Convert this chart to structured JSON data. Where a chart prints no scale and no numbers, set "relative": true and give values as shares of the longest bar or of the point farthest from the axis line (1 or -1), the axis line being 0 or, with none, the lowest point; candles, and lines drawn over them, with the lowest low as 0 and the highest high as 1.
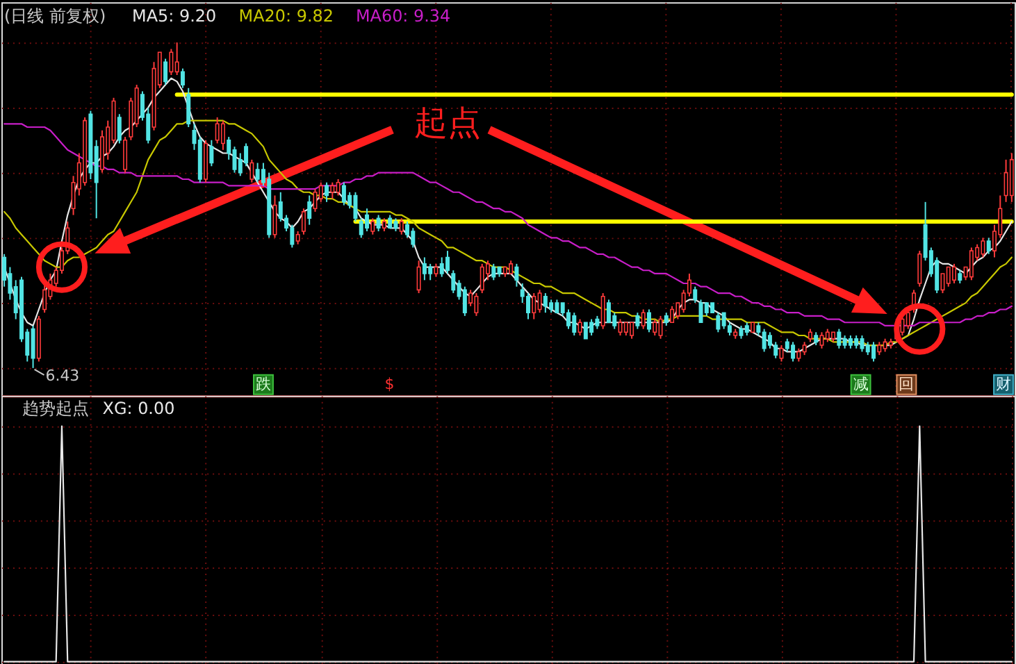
{
  "chart_data": [
    {
      "type": "candlestick",
      "relative": true,
      "title": "(日线 前复权)",
      "grid": true,
      "categories": [
        null,
        null,
        null,
        null,
        null,
        null,
        null,
        null,
        null,
        null,
        null,
        null,
        null,
        null,
        null,
        null,
        null,
        null,
        null,
        null,
        null,
        null,
        null,
        null,
        null,
        null,
        null,
        null,
        null,
        null,
        null,
        null,
        null,
        null,
        null,
        null,
        null,
        null,
        null,
        null,
        null,
        null,
        null,
        null,
        null,
        null,
        null,
        null,
        null,
        null,
        null,
        null,
        null,
        null,
        null,
        null,
        null,
        null,
        null,
        null,
        null,
        null,
        null,
        null,
        null,
        null,
        null,
        null,
        null,
        null,
        null,
        null,
        null,
        null,
        null,
        null,
        null,
        null,
        null,
        null,
        null,
        null,
        null,
        null,
        null,
        null,
        null,
        null,
        null,
        null,
        null,
        null,
        null,
        null,
        null,
        null,
        null,
        null,
        null,
        null,
        null,
        null,
        null,
        null,
        null,
        null,
        null,
        null,
        null,
        null,
        null,
        null,
        null,
        null,
        null,
        null,
        null,
        null,
        null,
        null,
        null,
        null,
        null,
        null,
        null,
        null,
        null,
        null,
        null,
        null,
        null,
        null,
        null,
        null,
        null,
        null,
        null,
        null,
        null,
        null,
        null,
        null,
        null,
        null,
        null,
        null,
        null,
        null,
        null,
        null,
        null,
        null,
        null,
        null,
        null,
        null,
        null,
        null,
        null,
        null,
        null,
        null,
        null,
        null,
        null,
        null,
        null,
        null,
        null,
        null,
        null,
        null,
        null,
        null,
        null,
        null
      ],
      "ohlc": [
        [
          0.34,
          0.35,
          0.25,
          0.27
        ],
        [
          0.29,
          0.31,
          0.21,
          0.23
        ],
        [
          0.25,
          0.27,
          0.15,
          0.17
        ],
        [
          0.27,
          0.28,
          0.08,
          0.09
        ],
        [
          0.11,
          0.12,
          0.02,
          0.04
        ],
        [
          0.12,
          0.13,
          0,
          0.03
        ],
        [
          0.03,
          0.16,
          0.02,
          0.15
        ],
        [
          0.18,
          0.26,
          0.17,
          0.24
        ],
        [
          0.22,
          0.29,
          0.21,
          0.27
        ],
        [
          0.26,
          0.31,
          0.25,
          0.3
        ],
        [
          0.3,
          0.37,
          0.29,
          0.36
        ],
        [
          0.36,
          0.45,
          0.35,
          0.43
        ],
        [
          0.49,
          0.59,
          0.47,
          0.57
        ],
        [
          0.55,
          0.66,
          0.53,
          0.63
        ],
        [
          0.57,
          0.77,
          0.56,
          0.76
        ],
        [
          0.78,
          0.79,
          0.58,
          0.6
        ],
        [
          0.68,
          0.7,
          0.46,
          0.57
        ],
        [
          0.61,
          0.73,
          0.6,
          0.71
        ],
        [
          0.66,
          0.76,
          0.64,
          0.74
        ],
        [
          0.7,
          0.83,
          0.69,
          0.82
        ],
        [
          0.77,
          0.78,
          0.69,
          0.7
        ],
        [
          0.61,
          0.71,
          0.6,
          0.7
        ],
        [
          0.71,
          0.83,
          0.7,
          0.82
        ],
        [
          0.75,
          0.87,
          0.74,
          0.86
        ],
        [
          0.84,
          0.85,
          0.76,
          0.77
        ],
        [
          0.78,
          0.8,
          0.69,
          0.7
        ],
        [
          0.74,
          0.94,
          0.73,
          0.92
        ],
        [
          0.87,
          0.97,
          0.86,
          0.97
        ],
        [
          0.94,
          0.95,
          0.87,
          0.88
        ],
        [
          0.91,
          0.98,
          0.9,
          0.97
        ],
        [
          0.91,
          1,
          0.9,
          0.94
        ],
        [
          0.91,
          0.92,
          0.86,
          0.87
        ],
        [
          0.84,
          0.86,
          0.74,
          0.75
        ],
        [
          0.73,
          0.75,
          0.67,
          0.69
        ],
        [
          0.7,
          0.71,
          0.57,
          0.58
        ],
        [
          0.58,
          0.7,
          0.57,
          0.69
        ],
        [
          0.68,
          0.7,
          0.62,
          0.63
        ],
        [
          0.7,
          0.77,
          0.69,
          0.75
        ],
        [
          0.69,
          0.76,
          0.67,
          0.75
        ],
        [
          0.7,
          0.71,
          0.64,
          0.66
        ],
        [
          0.67,
          0.68,
          0.6,
          0.61
        ],
        [
          0.64,
          0.66,
          0.59,
          0.6
        ],
        [
          0.68,
          0.69,
          0.62,
          0.63
        ],
        [
          0.58,
          0.64,
          0.57,
          0.63
        ],
        [
          0.61,
          0.63,
          0.57,
          0.58
        ],
        [
          0.61,
          0.63,
          0.56,
          0.57
        ],
        [
          0.58,
          0.6,
          0.4,
          0.41
        ],
        [
          0.41,
          0.53,
          0.4,
          0.5
        ],
        [
          0.51,
          0.54,
          0.45,
          0.46
        ],
        [
          0.46,
          0.47,
          0.42,
          0.43
        ],
        [
          0.43,
          0.44,
          0.37,
          0.38
        ],
        [
          0.39,
          0.42,
          0.38,
          0.41
        ],
        [
          0.42,
          0.49,
          0.41,
          0.48
        ],
        [
          0.51,
          0.53,
          0.44,
          0.46
        ],
        [
          0.49,
          0.55,
          0.48,
          0.54
        ],
        [
          0.52,
          0.57,
          0.51,
          0.56
        ],
        [
          0.56,
          0.57,
          0.51,
          0.53
        ],
        [
          0.54,
          0.57,
          0.52,
          0.56
        ],
        [
          0.54,
          0.58,
          0.53,
          0.57
        ],
        [
          0.56,
          0.57,
          0.5,
          0.51
        ],
        [
          0.53,
          0.54,
          0.49,
          0.5
        ],
        [
          0.53,
          0.54,
          0.45,
          0.46
        ],
        [
          0.45,
          0.46,
          0.4,
          0.41
        ],
        [
          0.47,
          0.49,
          0.42,
          0.43
        ],
        [
          0.42,
          0.46,
          0.41,
          0.45
        ],
        [
          0.46,
          0.47,
          0.42,
          0.43
        ],
        [
          0.43,
          0.46,
          0.42,
          0.45
        ],
        [
          0.46,
          0.47,
          0.43,
          0.43
        ],
        [
          0.45,
          0.46,
          0.42,
          0.43
        ],
        [
          0.42,
          0.46,
          0.41,
          0.45
        ],
        [
          0.44,
          0.45,
          0.4,
          0.41
        ],
        [
          0.42,
          0.43,
          0.37,
          0.38
        ],
        [
          0.24,
          0.33,
          0.23,
          0.31
        ],
        [
          0.32,
          0.34,
          0.27,
          0.29
        ],
        [
          0.31,
          0.32,
          0.27,
          0.29
        ],
        [
          0.29,
          0.32,
          0.28,
          0.31
        ],
        [
          0.32,
          0.34,
          0.28,
          0.29
        ],
        [
          0.34,
          0.36,
          0.29,
          0.3
        ],
        [
          0.29,
          0.3,
          0.23,
          0.24
        ],
        [
          0.26,
          0.27,
          0.21,
          0.22
        ],
        [
          0.24,
          0.25,
          0.16,
          0.17
        ],
        [
          0.2,
          0.24,
          0.19,
          0.23
        ],
        [
          0.17,
          0.23,
          0.16,
          0.22
        ],
        [
          0.24,
          0.32,
          0.23,
          0.31
        ],
        [
          0.29,
          0.33,
          0.27,
          0.32
        ],
        [
          0.31,
          0.32,
          0.27,
          0.28
        ],
        [
          0.31,
          0.31,
          0.28,
          0.29
        ],
        [
          0.29,
          0.31,
          0.28,
          0.31
        ],
        [
          0.29,
          0.33,
          0.29,
          0.32
        ],
        [
          0.31,
          0.32,
          0.25,
          0.27
        ],
        [
          0.24,
          0.26,
          0.2,
          0.22
        ],
        [
          0.22,
          0.23,
          0.15,
          0.17
        ],
        [
          0.17,
          0.23,
          0.15,
          0.22
        ],
        [
          0.18,
          0.24,
          0.17,
          0.23
        ],
        [
          0.22,
          0.23,
          0.17,
          0.19
        ],
        [
          0.2,
          0.21,
          0.17,
          0.18
        ],
        [
          0.2,
          0.21,
          0.17,
          0.17
        ],
        [
          0.2,
          0.2,
          0.16,
          0.17
        ],
        [
          0.17,
          0.18,
          0.12,
          0.13
        ],
        [
          0.16,
          0.17,
          0.1,
          0.11
        ],
        [
          0.11,
          0.15,
          0.1,
          0.14
        ],
        [
          0.14,
          0.14,
          0.09,
          0.09
        ],
        [
          0.14,
          0.15,
          0.1,
          0.11
        ],
        [
          0.15,
          0.16,
          0.12,
          0.13
        ],
        [
          0.13,
          0.23,
          0.12,
          0.22
        ],
        [
          0.2,
          0.21,
          0.14,
          0.14
        ],
        [
          0.16,
          0.17,
          0.12,
          0.13
        ],
        [
          0.11,
          0.15,
          0.1,
          0.14
        ],
        [
          0.11,
          0.14,
          0.1,
          0.14
        ],
        [
          0.1,
          0.14,
          0.09,
          0.14
        ],
        [
          0.16,
          0.17,
          0.12,
          0.13
        ],
        [
          0.13,
          0.18,
          0.12,
          0.17
        ],
        [
          0.17,
          0.18,
          0.11,
          0.12
        ],
        [
          0.11,
          0.15,
          0.1,
          0.14
        ],
        [
          0.1,
          0.16,
          0.09,
          0.15
        ],
        [
          0.16,
          0.17,
          0.13,
          0.14
        ],
        [
          0.14,
          0.19,
          0.14,
          0.18
        ],
        [
          0.16,
          0.2,
          0.15,
          0.2
        ],
        [
          0.18,
          0.24,
          0.17,
          0.23
        ],
        [
          0.23,
          0.29,
          0.22,
          0.27
        ],
        [
          0.24,
          0.25,
          0.2,
          0.21
        ],
        [
          0.2,
          0.21,
          0.14,
          0.14
        ],
        [
          0.2,
          0.2,
          0.16,
          0.17
        ],
        [
          0.2,
          0.2,
          0.17,
          0.17
        ],
        [
          0.16,
          0.17,
          0.11,
          0.12
        ],
        [
          0.17,
          0.17,
          0.12,
          0.13
        ],
        [
          0.13,
          0.14,
          0.1,
          0.11
        ],
        [
          0.1,
          0.12,
          0.09,
          0.11
        ],
        [
          0.12,
          0.13,
          0.09,
          0.1
        ],
        [
          0.13,
          0.14,
          0.1,
          0.11
        ],
        [
          0.11,
          0.14,
          0.11,
          0.14
        ],
        [
          0.13,
          0.14,
          0.1,
          0.11
        ],
        [
          0.11,
          0.12,
          0.05,
          0.06
        ],
        [
          0.1,
          0.11,
          0.06,
          0.07
        ],
        [
          0.07,
          0.08,
          0.03,
          0.04
        ],
        [
          0.03,
          0.07,
          0.02,
          0.06
        ],
        [
          0.08,
          0.09,
          0.05,
          0.06
        ],
        [
          0.07,
          0.08,
          0.02,
          0.03
        ],
        [
          0.03,
          0.06,
          0.02,
          0.05
        ],
        [
          0.05,
          0.08,
          0.04,
          0.07
        ],
        [
          0.09,
          0.12,
          0.08,
          0.11
        ],
        [
          0.1,
          0.11,
          0.07,
          0.08
        ],
        [
          0.07,
          0.11,
          0.06,
          0.1
        ],
        [
          0.09,
          0.12,
          0.08,
          0.11
        ],
        [
          0.09,
          0.11,
          0.08,
          0.11
        ],
        [
          0.11,
          0.12,
          0.06,
          0.07
        ],
        [
          0.09,
          0.1,
          0.06,
          0.07
        ],
        [
          0.09,
          0.1,
          0.06,
          0.07
        ],
        [
          0.09,
          0.1,
          0.06,
          0.07
        ],
        [
          0.09,
          0.1,
          0.05,
          0.06
        ],
        [
          0.07,
          0.08,
          0.04,
          0.05
        ],
        [
          0.07,
          0.08,
          0.02,
          0.03
        ],
        [
          0.05,
          0.08,
          0.04,
          0.07
        ],
        [
          0.06,
          0.09,
          0.05,
          0.08
        ],
        [
          0.07,
          0.09,
          0.06,
          0.08
        ],
        [
          0.09,
          0.12,
          0.08,
          0.11
        ],
        [
          0.11,
          0.17,
          0.1,
          0.15
        ],
        [
          0.13,
          0.18,
          0.12,
          0.17
        ],
        [
          0.18,
          0.24,
          0.17,
          0.23
        ],
        [
          0.26,
          0.36,
          0.25,
          0.35
        ],
        [
          0.44,
          0.51,
          0.33,
          0.34
        ],
        [
          0.36,
          0.37,
          0.28,
          0.29
        ],
        [
          0.33,
          0.34,
          0.23,
          0.24
        ],
        [
          0.24,
          0.29,
          0.23,
          0.29
        ],
        [
          0.26,
          0.31,
          0.25,
          0.31
        ],
        [
          0.27,
          0.32,
          0.26,
          0.31
        ],
        [
          0.29,
          0.3,
          0.26,
          0.27
        ],
        [
          0.28,
          0.31,
          0.27,
          0.31
        ],
        [
          0.28,
          0.37,
          0.27,
          0.36
        ],
        [
          0.34,
          0.38,
          0.33,
          0.37
        ],
        [
          0.35,
          0.4,
          0.34,
          0.39
        ],
        [
          0.39,
          0.4,
          0.35,
          0.36
        ],
        [
          0.36,
          0.44,
          0.34,
          0.42
        ],
        [
          0.41,
          0.53,
          0.4,
          0.49
        ],
        [
          0.53,
          0.64,
          0.51,
          0.6
        ],
        [
          0.53,
          0.66,
          0.51,
          0.64
        ]
      ],
      "series": [
        {
          "type": "line",
          "color": "#ffff00",
          "values": [
            null,
            null,
            null,
            null,
            null,
            null,
            null,
            null,
            null,
            null,
            null,
            null,
            null,
            null,
            null,
            null,
            null,
            null,
            null,
            null,
            null,
            null,
            null,
            null,
            null,
            null,
            null,
            null,
            null,
            null,
            0.84,
            0.84,
            0.84,
            0.84,
            0.84,
            0.84,
            0.84,
            0.84,
            0.84,
            0.84,
            0.84,
            0.84,
            0.84,
            0.84,
            0.84,
            0.84,
            0.84,
            0.84,
            0.84,
            0.84,
            0.84,
            0.84,
            0.84,
            0.84,
            0.84,
            0.84,
            0.84,
            0.84,
            0.84,
            0.84,
            0.84,
            0.84,
            0.84,
            0.84,
            0.84,
            0.84,
            0.84,
            0.84,
            0.84,
            0.84,
            0.84,
            0.84,
            0.84,
            0.84,
            0.84,
            0.84,
            0.84,
            0.84,
            0.84,
            0.84,
            0.84,
            0.84,
            0.84,
            0.84,
            0.84,
            0.84,
            0.84,
            0.84,
            0.84,
            0.84,
            0.84,
            0.84,
            0.84,
            0.84,
            0.84,
            0.84,
            0.84,
            0.84,
            0.84,
            0.84,
            0.84,
            0.84,
            0.84,
            0.84,
            0.84,
            0.84,
            0.84,
            0.84,
            0.84,
            0.84,
            0.84,
            0.84,
            0.84,
            0.84,
            0.84,
            0.84,
            0.84,
            0.84,
            0.84,
            0.84,
            0.84,
            0.84,
            0.84,
            0.84,
            0.84,
            0.84,
            0.84,
            0.84,
            0.84,
            0.84,
            0.84,
            0.84,
            0.84,
            0.84,
            0.84,
            0.84,
            0.84,
            0.84,
            0.84,
            0.84,
            0.84,
            0.84,
            0.84,
            0.84,
            0.84,
            0.84,
            0.84,
            0.84,
            0.84,
            0.84,
            0.84,
            0.84,
            0.84,
            0.84,
            0.84,
            0.84,
            0.84,
            0.84,
            0.84,
            0.84,
            0.84,
            0.84,
            0.84,
            0.84,
            0.84,
            0.84,
            0.84,
            0.84,
            0.84,
            0.84,
            0.84,
            0.84,
            0.84,
            0.84,
            0.84,
            0.84
          ]
        },
        {
          "type": "line",
          "color": "#ffff00",
          "values": [
            null,
            null,
            null,
            null,
            null,
            null,
            null,
            null,
            null,
            null,
            null,
            null,
            null,
            null,
            null,
            null,
            null,
            null,
            null,
            null,
            null,
            null,
            null,
            null,
            null,
            null,
            null,
            null,
            null,
            null,
            null,
            null,
            null,
            null,
            null,
            null,
            null,
            null,
            null,
            null,
            null,
            null,
            null,
            null,
            null,
            null,
            null,
            null,
            null,
            null,
            null,
            null,
            null,
            null,
            null,
            null,
            null,
            null,
            null,
            null,
            null,
            0.45,
            0.45,
            0.45,
            0.45,
            0.45,
            0.45,
            0.45,
            0.45,
            0.45,
            0.45,
            0.45,
            0.45,
            0.45,
            0.45,
            0.45,
            0.45,
            0.45,
            0.45,
            0.45,
            0.45,
            0.45,
            0.45,
            0.45,
            0.45,
            0.45,
            0.45,
            0.45,
            0.45,
            0.45,
            0.45,
            0.45,
            0.45,
            0.45,
            0.45,
            0.45,
            0.45,
            0.45,
            0.45,
            0.45,
            0.45,
            0.45,
            0.45,
            0.45,
            0.45,
            0.45,
            0.45,
            0.45,
            0.45,
            0.45,
            0.45,
            0.45,
            0.45,
            0.45,
            0.45,
            0.45,
            0.45,
            0.45,
            0.45,
            0.45,
            0.45,
            0.45,
            0.45,
            0.45,
            0.45,
            0.45,
            0.45,
            0.45,
            0.45,
            0.45,
            0.45,
            0.45,
            0.45,
            0.45,
            0.45,
            0.45,
            0.45,
            0.45,
            0.45,
            0.45,
            0.45,
            0.45,
            0.45,
            0.45,
            0.45,
            0.45,
            0.45,
            0.45,
            0.45,
            0.45,
            0.45,
            0.45,
            0.45,
            0.45,
            0.45,
            0.45,
            0.45,
            0.45,
            0.45,
            0.45,
            0.45,
            0.45,
            0.45,
            0.45,
            0.45,
            0.45,
            0.45,
            0.45,
            0.45,
            0.45,
            0.45,
            0.45,
            0.45,
            0.45,
            0.45,
            0.45
          ]
        },
        {
          "type": "line",
          "name": "MA5: 9.20",
          "color": "#e6e6e6",
          "values": [
            0.31,
            0.26,
            0.21,
            0.17,
            0.14,
            0.13,
            0.18,
            0.23,
            0.27,
            0.3,
            0.39,
            0.47,
            0.53,
            0.58,
            0.61,
            0.63,
            0.63,
            0.65,
            0.66,
            0.68,
            0.71,
            0.73,
            0.74,
            0.76,
            0.78,
            0.8,
            0.83,
            0.85,
            0.87,
            0.89,
            0.88,
            0.85,
            0.8,
            0.75,
            0.71,
            0.69,
            0.68,
            0.67,
            0.66,
            0.66,
            0.65,
            0.64,
            0.63,
            0.6,
            0.57,
            0.54,
            0.51,
            0.48,
            0.46,
            0.45,
            0.43,
            0.45,
            0.48,
            0.49,
            0.51,
            0.53,
            0.54,
            0.54,
            0.54,
            0.52,
            0.5,
            0.49,
            0.46,
            0.45,
            0.44,
            0.44,
            0.44,
            0.43,
            0.43,
            0.43,
            0.41,
            0.39,
            0.34,
            0.31,
            0.31,
            0.31,
            0.31,
            0.29,
            0.27,
            0.25,
            0.23,
            0.22,
            0.24,
            0.26,
            0.28,
            0.29,
            0.29,
            0.29,
            0.29,
            0.27,
            0.25,
            0.23,
            0.21,
            0.2,
            0.19,
            0.18,
            0.17,
            0.16,
            0.14,
            0.14,
            0.13,
            0.12,
            0.13,
            0.14,
            0.14,
            0.14,
            0.14,
            0.14,
            0.14,
            0.14,
            0.14,
            0.14,
            0.14,
            0.14,
            0.14,
            0.14,
            0.15,
            0.18,
            0.2,
            0.21,
            0.21,
            0.2,
            0.2,
            0.18,
            0.17,
            0.16,
            0.14,
            0.13,
            0.12,
            0.12,
            0.11,
            0.1,
            0.09,
            0.08,
            0.06,
            0.06,
            0.05,
            0.05,
            0.05,
            0.06,
            0.07,
            0.08,
            0.09,
            0.09,
            0.09,
            0.09,
            0.09,
            0.08,
            0.08,
            0.07,
            0.07,
            0.07,
            0.07,
            0.07,
            0.07,
            0.08,
            0.09,
            0.1,
            0.15,
            0.21,
            0.26,
            0.31,
            0.33,
            0.32,
            0.32,
            0.31,
            0.3,
            0.29,
            0.31,
            0.33,
            0.34,
            0.36,
            0.37,
            0.39,
            0.42,
            0.45
          ]
        },
        {
          "type": "line",
          "name": "MA20: 9.82",
          "color": "#c8c800",
          "values": [
            0.48,
            0.46,
            0.43,
            0.41,
            0.39,
            0.37,
            0.35,
            0.33,
            0.32,
            0.31,
            0.31,
            0.33,
            0.34,
            0.34,
            0.35,
            0.36,
            0.37,
            0.39,
            0.41,
            0.42,
            0.45,
            0.48,
            0.51,
            0.54,
            0.59,
            0.64,
            0.67,
            0.7,
            0.71,
            0.73,
            0.75,
            0.75,
            0.76,
            0.76,
            0.76,
            0.76,
            0.76,
            0.76,
            0.76,
            0.75,
            0.75,
            0.74,
            0.73,
            0.72,
            0.7,
            0.68,
            0.64,
            0.62,
            0.6,
            0.58,
            0.57,
            0.55,
            0.54,
            0.54,
            0.53,
            0.53,
            0.52,
            0.52,
            0.51,
            0.51,
            0.5,
            0.49,
            0.48,
            0.48,
            0.48,
            0.48,
            0.48,
            0.48,
            0.47,
            0.47,
            0.46,
            0.45,
            0.43,
            0.42,
            0.41,
            0.4,
            0.39,
            0.37,
            0.37,
            0.36,
            0.35,
            0.34,
            0.33,
            0.33,
            0.32,
            0.31,
            0.31,
            0.31,
            0.3,
            0.29,
            0.28,
            0.27,
            0.26,
            0.26,
            0.25,
            0.25,
            0.24,
            0.23,
            0.23,
            0.23,
            0.22,
            0.21,
            0.2,
            0.19,
            0.18,
            0.18,
            0.17,
            0.17,
            0.17,
            0.16,
            0.16,
            0.15,
            0.15,
            0.15,
            0.14,
            0.15,
            0.15,
            0.16,
            0.16,
            0.16,
            0.16,
            0.16,
            0.16,
            0.15,
            0.15,
            0.15,
            0.15,
            0.15,
            0.15,
            0.14,
            0.14,
            0.14,
            0.14,
            0.13,
            0.12,
            0.11,
            0.11,
            0.11,
            0.1,
            0.1,
            0.09,
            0.09,
            0.09,
            0.09,
            0.08,
            0.08,
            0.08,
            0.08,
            0.08,
            0.08,
            0.07,
            0.07,
            0.07,
            0.07,
            0.08,
            0.08,
            0.09,
            0.1,
            0.11,
            0.12,
            0.13,
            0.14,
            0.15,
            0.16,
            0.17,
            0.18,
            0.19,
            0.2,
            0.22,
            0.23,
            0.25,
            0.27,
            0.29,
            0.31,
            0.32,
            0.34
          ]
        },
        {
          "type": "line",
          "name": "MA60: 9.34",
          "color": "#c81ec8",
          "values": [
            0.75,
            0.75,
            0.75,
            0.75,
            0.74,
            0.74,
            0.74,
            0.74,
            0.73,
            0.71,
            0.69,
            0.67,
            0.66,
            0.65,
            0.64,
            0.63,
            0.62,
            0.62,
            0.61,
            0.61,
            0.6,
            0.6,
            0.6,
            0.59,
            0.59,
            0.59,
            0.59,
            0.59,
            0.59,
            0.59,
            0.59,
            0.58,
            0.58,
            0.57,
            0.57,
            0.57,
            0.57,
            0.57,
            0.57,
            0.56,
            0.56,
            0.56,
            0.56,
            0.56,
            0.56,
            0.56,
            0.55,
            0.55,
            0.55,
            0.55,
            0.55,
            0.55,
            0.55,
            0.55,
            0.55,
            0.56,
            0.56,
            0.56,
            0.56,
            0.57,
            0.57,
            0.58,
            0.58,
            0.59,
            0.59,
            0.6,
            0.6,
            0.6,
            0.6,
            0.6,
            0.6,
            0.6,
            0.59,
            0.58,
            0.57,
            0.57,
            0.56,
            0.55,
            0.54,
            0.54,
            0.53,
            0.52,
            0.51,
            0.51,
            0.5,
            0.49,
            0.49,
            0.48,
            0.48,
            0.47,
            0.46,
            0.44,
            0.43,
            0.42,
            0.41,
            0.4,
            0.4,
            0.39,
            0.39,
            0.38,
            0.37,
            0.37,
            0.36,
            0.35,
            0.35,
            0.34,
            0.34,
            0.33,
            0.32,
            0.31,
            0.31,
            0.3,
            0.3,
            0.29,
            0.29,
            0.29,
            0.28,
            0.27,
            0.26,
            0.26,
            0.26,
            0.25,
            0.25,
            0.24,
            0.23,
            0.23,
            0.23,
            0.22,
            0.22,
            0.21,
            0.2,
            0.2,
            0.19,
            0.19,
            0.18,
            0.18,
            0.17,
            0.17,
            0.17,
            0.16,
            0.16,
            0.16,
            0.16,
            0.15,
            0.15,
            0.15,
            0.14,
            0.14,
            0.14,
            0.14,
            0.14,
            0.14,
            0.14,
            0.13,
            0.13,
            0.13,
            0.13,
            0.13,
            0.13,
            0.14,
            0.14,
            0.14,
            0.14,
            0.14,
            0.14,
            0.14,
            0.14,
            0.15,
            0.15,
            0.16,
            0.16,
            0.17,
            0.17,
            0.18,
            0.18,
            0.19
          ]
        }
      ],
      "annotations": [
        "起点",
        "6.43",
        "跌",
        "$",
        "减",
        "回",
        "财"
      ]
    },
    {
      "type": "line",
      "relative": true,
      "title": "趋势起点",
      "grid": true,
      "categories": [
        null,
        null,
        null,
        null,
        null,
        null,
        null,
        null,
        null,
        null,
        null,
        null,
        null,
        null,
        null,
        null,
        null,
        null,
        null,
        null,
        null,
        null,
        null,
        null,
        null,
        null,
        null,
        null,
        null,
        null,
        null,
        null,
        null,
        null,
        null,
        null,
        null,
        null,
        null,
        null,
        null,
        null,
        null,
        null,
        null,
        null,
        null,
        null,
        null,
        null,
        null,
        null,
        null,
        null,
        null,
        null,
        null,
        null,
        null,
        null,
        null,
        null,
        null,
        null,
        null,
        null,
        null,
        null,
        null,
        null,
        null,
        null,
        null,
        null,
        null,
        null,
        null,
        null,
        null,
        null,
        null,
        null,
        null,
        null,
        null,
        null,
        null,
        null,
        null,
        null,
        null,
        null,
        null,
        null,
        null,
        null,
        null,
        null,
        null,
        null,
        null,
        null,
        null,
        null,
        null,
        null,
        null,
        null,
        null,
        null,
        null,
        null,
        null,
        null,
        null,
        null,
        null,
        null,
        null,
        null,
        null,
        null,
        null,
        null,
        null,
        null,
        null,
        null,
        null,
        null,
        null,
        null,
        null,
        null,
        null,
        null,
        null,
        null,
        null,
        null,
        null,
        null,
        null,
        null,
        null,
        null,
        null,
        null,
        null,
        null,
        null,
        null,
        null,
        null,
        null,
        null,
        null,
        null,
        null,
        null,
        null,
        null,
        null,
        null,
        null,
        null,
        null,
        null,
        null,
        null,
        null,
        null,
        null,
        null,
        null,
        null
      ],
      "series": [
        {
          "name": "XG: 0.00",
          "color": "#e8e8e8",
          "values": [
            0,
            0,
            0,
            0,
            0,
            0,
            0,
            0,
            0,
            0,
            1,
            0,
            0,
            0,
            0,
            0,
            0,
            0,
            0,
            0,
            0,
            0,
            0,
            0,
            0,
            0,
            0,
            0,
            0,
            0,
            0,
            0,
            0,
            0,
            0,
            0,
            0,
            0,
            0,
            0,
            0,
            0,
            0,
            0,
            0,
            0,
            0,
            0,
            0,
            0,
            0,
            0,
            0,
            0,
            0,
            0,
            0,
            0,
            0,
            0,
            0,
            0,
            0,
            0,
            0,
            0,
            0,
            0,
            0,
            0,
            0,
            0,
            0,
            0,
            0,
            0,
            0,
            0,
            0,
            0,
            0,
            0,
            0,
            0,
            0,
            0,
            0,
            0,
            0,
            0,
            0,
            0,
            0,
            0,
            0,
            0,
            0,
            0,
            0,
            0,
            0,
            0,
            0,
            0,
            0,
            0,
            0,
            0,
            0,
            0,
            0,
            0,
            0,
            0,
            0,
            0,
            0,
            0,
            0,
            0,
            0,
            0,
            0,
            0,
            0,
            0,
            0,
            0,
            0,
            0,
            0,
            0,
            0,
            0,
            0,
            0,
            0,
            0,
            0,
            0,
            0,
            0,
            0,
            0,
            0,
            0,
            0,
            0,
            0,
            0,
            0,
            0,
            0,
            0,
            0,
            0,
            0,
            0,
            0,
            1,
            0,
            0,
            0,
            0,
            0,
            0,
            0,
            0,
            0,
            0,
            0,
            0,
            0,
            0,
            0,
            0
          ]
        }
      ]
    }
  ]
}
